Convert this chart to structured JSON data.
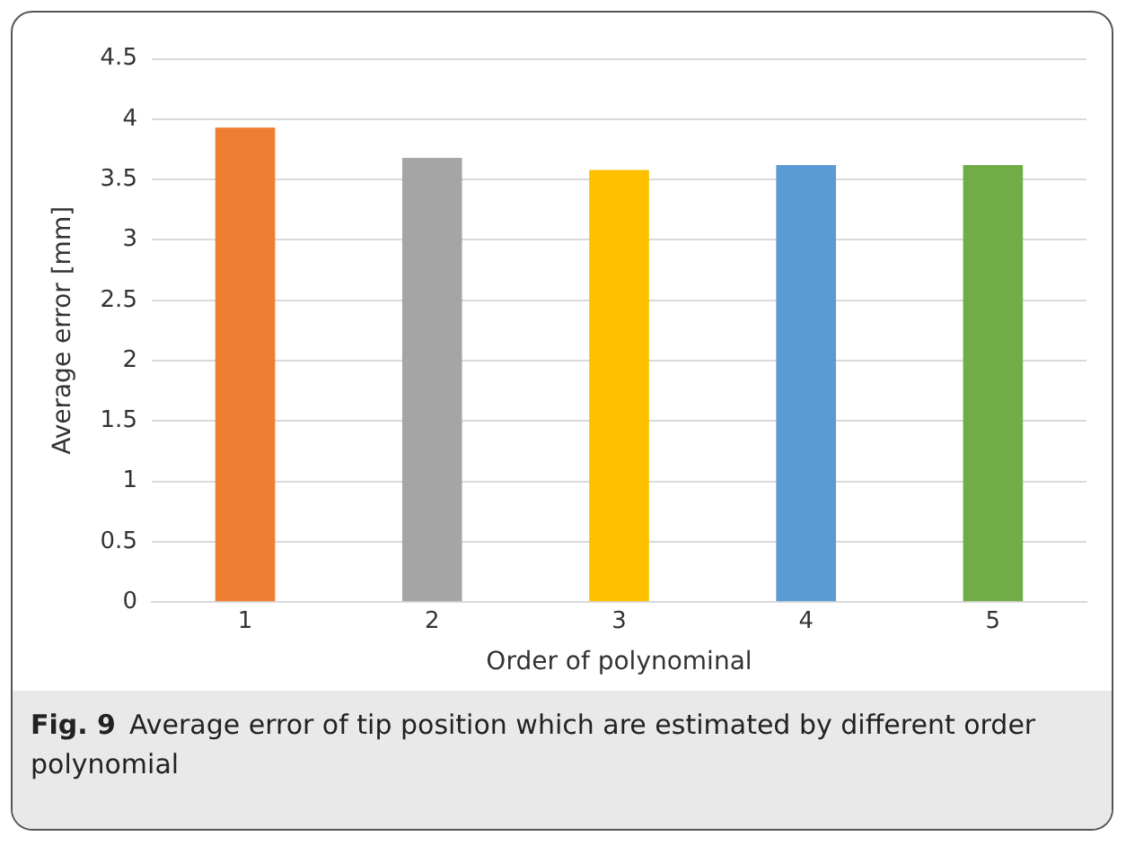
{
  "chart_data": {
    "type": "bar",
    "categories": [
      "1",
      "2",
      "3",
      "4",
      "5"
    ],
    "values": [
      3.93,
      3.68,
      3.58,
      3.62,
      3.62
    ],
    "colors": [
      "#ed7d31",
      "#a5a5a5",
      "#ffc000",
      "#5b9bd5",
      "#70ad47"
    ],
    "xlabel": "Order of polynominal",
    "ylabel": "Average error [mm]",
    "ylim": [
      0,
      4.5
    ],
    "yticks": [
      0,
      0.5,
      1,
      1.5,
      2,
      2.5,
      3,
      3.5,
      4,
      4.5
    ],
    "grid": "y",
    "annotations": [
      "Fig. 9",
      "Average error of tip position which are estimated by different order polynomial"
    ]
  }
}
